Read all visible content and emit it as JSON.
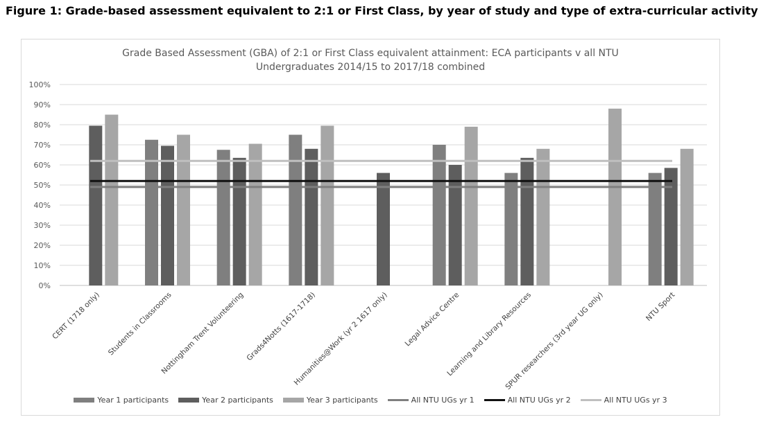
{
  "figure_caption": "Figure 1: Grade-based assessment equivalent to 2:1 or First Class, by year of study and type of extra-curricular activity",
  "chart_data": {
    "type": "bar",
    "title_line1": "Grade Based Assessment (GBA) of 2:1 or First Class equivalent attainment: ECA participants v all NTU",
    "title_line2": "Undergraduates 2014/15 to 2017/18 combined",
    "categories": [
      "CERT (1718 only)",
      "Students in Classrooms",
      "Nottingham Trent Volunteering",
      "Grads4Notts (1617-1718)",
      "Humanities@Work (yr 2 1617 only)",
      "Legal Advice Centre",
      "Learning and Library Resources",
      "SPUR researchers (3rd year UG only)",
      "NTU Sport"
    ],
    "series": [
      {
        "name": "Year 1 participants",
        "color": "#7f7f7f",
        "values": [
          null,
          72.5,
          67.5,
          75,
          null,
          70,
          56,
          null,
          56
        ]
      },
      {
        "name": "Year 2 participants",
        "color": "#5e5e5e",
        "values": [
          79.5,
          69.5,
          63.5,
          68,
          56,
          60,
          63.5,
          null,
          58.5
        ]
      },
      {
        "name": "Year 3 participants",
        "color": "#a6a6a6",
        "values": [
          85,
          75,
          70.5,
          79.5,
          null,
          79,
          68,
          88,
          68
        ]
      }
    ],
    "reference_lines": [
      {
        "name": "All NTU UGs yr 1",
        "value": 49,
        "color": "#7f7f7f"
      },
      {
        "name": "All NTU UGs yr 2",
        "value": 52,
        "color": "#111111"
      },
      {
        "name": "All NTU UGs yr 3",
        "value": 62,
        "color": "#bfbfbf"
      }
    ],
    "ylim": [
      0,
      100
    ],
    "yticks": [
      "0%",
      "10%",
      "20%",
      "30%",
      "40%",
      "50%",
      "60%",
      "70%",
      "80%",
      "90%",
      "100%"
    ],
    "grid": true,
    "legend_position": "bottom"
  }
}
